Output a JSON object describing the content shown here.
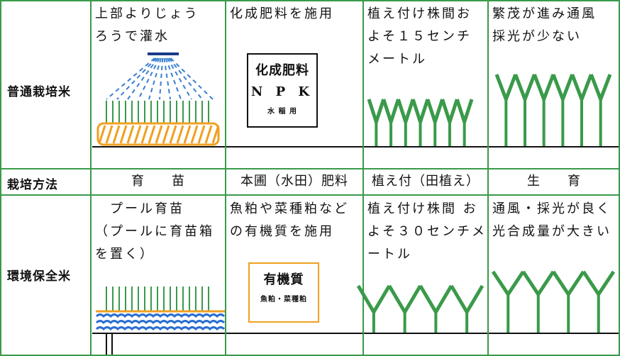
{
  "table": {
    "rows": [
      {
        "label": "普通栽培米",
        "cells": [
          {
            "lines": [
              "上部よりじょう",
              "ろうで灌水"
            ]
          },
          {
            "lines": [
              "化成肥料を施用"
            ],
            "box": [
              "化成肥料",
              "N P K",
              "水 稲 用"
            ]
          },
          {
            "lines": [
              "植え付け株間お",
              "よそ１５センチ",
              "メートル"
            ]
          },
          {
            "lines": [
              "繁茂が進み通風",
              "採光が少ない"
            ]
          }
        ]
      },
      {
        "label": "栽培方法",
        "cells": [
          {
            "lines": [
              "育　　苗"
            ]
          },
          {
            "lines": [
              "本圃（水田）肥料"
            ]
          },
          {
            "lines": [
              "植え付（田植え）"
            ]
          },
          {
            "lines": [
              "生　　育"
            ]
          }
        ]
      },
      {
        "label": "環境保全米",
        "cells": [
          {
            "lines": [
              "　プール育苗",
              "（プールに育苗箱",
              "を置く）"
            ]
          },
          {
            "lines": [
              "魚粕や菜種粕など",
              "の有機質を施用"
            ],
            "box": [
              "有機質",
              "魚粕・菜種粕"
            ]
          },
          {
            "lines": [
              "植え付け株間 お",
              "よそ３０センチメ",
              "ートル"
            ]
          },
          {
            "lines": [
              "通風・採光が良く",
              "光合成量が大きい"
            ]
          }
        ]
      }
    ]
  }
}
